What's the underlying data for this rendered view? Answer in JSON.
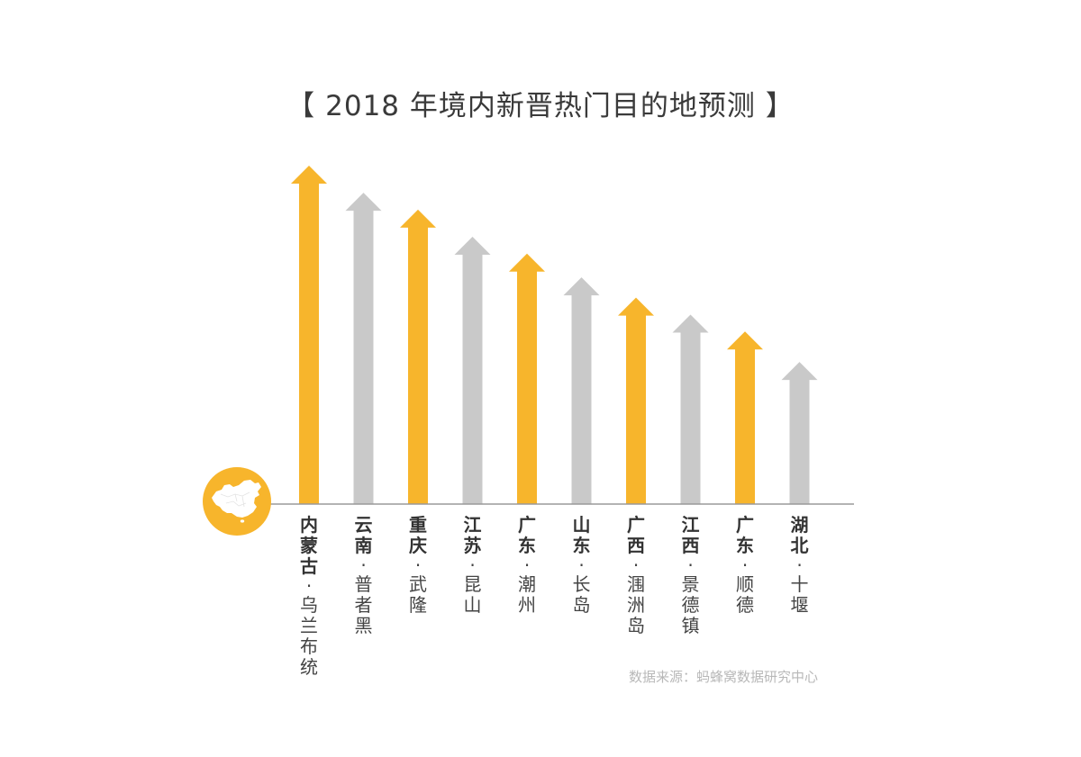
{
  "title": "【 2018 年境内新晋热门目的地预测 】",
  "source": "数据来源：蚂蜂窝数据研究中心",
  "colors": {
    "highlight": "#F7B52C",
    "neutral": "#C9C9C9",
    "axis": "#9a9a9a"
  },
  "badge_icon": "china-map-icon",
  "chart_data": {
    "type": "bar",
    "title": "【 2018 年境内新晋热门目的地预测 】",
    "xlabel": "",
    "ylabel": "",
    "grid": false,
    "legend": "none",
    "ylim": [
      0,
      100
    ],
    "categories": [
      {
        "province": "内蒙古",
        "city": "乌兰布统"
      },
      {
        "province": "云南",
        "city": "普者黑"
      },
      {
        "province": "重庆",
        "city": "武隆"
      },
      {
        "province": "江苏",
        "city": "昆山"
      },
      {
        "province": "广东",
        "city": "潮州"
      },
      {
        "province": "山东",
        "city": "长岛"
      },
      {
        "province": "广西",
        "city": "涠洲岛"
      },
      {
        "province": "江西",
        "city": "景德镇"
      },
      {
        "province": "广东",
        "city": "顺德"
      },
      {
        "province": "湖北",
        "city": "十堰"
      }
    ],
    "values": [
      100,
      92,
      87,
      79,
      74,
      67,
      61,
      56,
      51,
      42
    ],
    "bar_colors": [
      "#F7B52C",
      "#C9C9C9",
      "#F7B52C",
      "#C9C9C9",
      "#F7B52C",
      "#C9C9C9",
      "#F7B52C",
      "#C9C9C9",
      "#F7B52C",
      "#C9C9C9"
    ],
    "marker": "arrow"
  }
}
